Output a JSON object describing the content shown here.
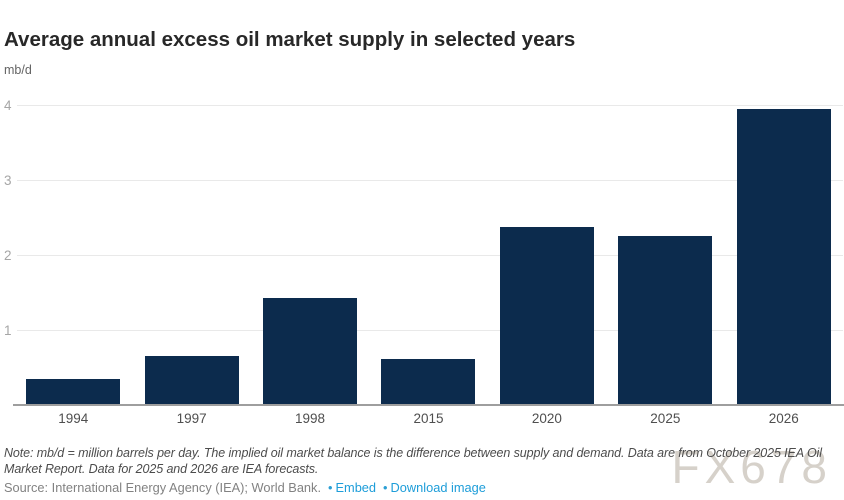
{
  "header": {
    "title": "Average annual excess oil market supply in selected years",
    "unit": "mb/d"
  },
  "chart_data": {
    "type": "bar",
    "categories": [
      "1994",
      "1997",
      "1998",
      "2015",
      "2020",
      "2025",
      "2026"
    ],
    "values": [
      0.35,
      0.65,
      1.43,
      0.61,
      2.38,
      2.26,
      3.95
    ],
    "title": "Average annual excess oil market supply in selected years",
    "xlabel": "",
    "ylabel": "mb/d",
    "ylim": [
      0,
      4.2
    ],
    "yticks": [
      1,
      2,
      3,
      4
    ],
    "grid": "horizontal",
    "legend": "none",
    "bar_color": "#0c2b4d",
    "axis_color": "#9e9e9e",
    "gridline_color": "#e9e9e9"
  },
  "footer": {
    "note": "Note: mb/d = million barrels per day. The implied oil market balance is the difference between supply and demand. Data are from October 2025 IEA Oil Market Report. Data for 2025 and 2026 are IEA forecasts.",
    "source_prefix": "Source: International Energy Agency (IEA); World Bank.",
    "bullet": "•",
    "embed_label": "Embed",
    "download_label": "Download image"
  },
  "watermark": "FX678"
}
